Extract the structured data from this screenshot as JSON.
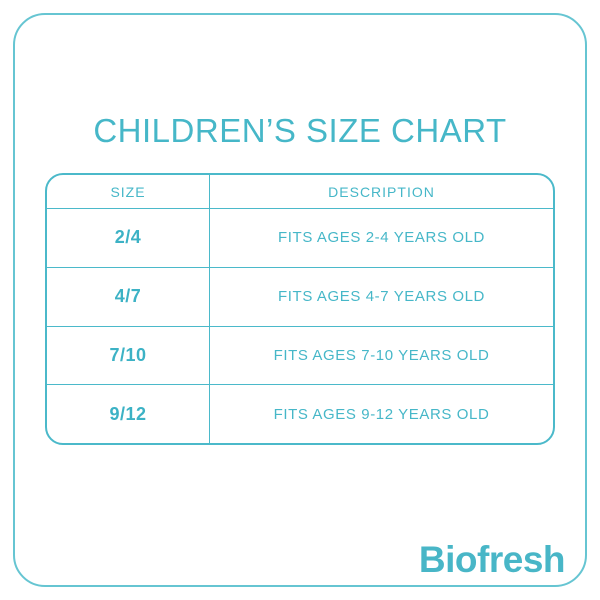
{
  "accent_color": "#46b7c8",
  "frame_border_color": "#66c5d2",
  "title": "CHILDREN’S SIZE CHART",
  "table": {
    "headers": [
      "SIZE",
      "DESCRIPTION"
    ],
    "rows": [
      {
        "size": "2/4",
        "description": "FITS AGES 2-4 YEARS OLD"
      },
      {
        "size": "4/7",
        "description": "FITS AGES 4-7 YEARS OLD"
      },
      {
        "size": "7/10",
        "description": "FITS AGES 7-10 YEARS OLD"
      },
      {
        "size": "9/12",
        "description": "FITS AGES 9-12 YEARS OLD"
      }
    ]
  },
  "brand": "Biofresh"
}
